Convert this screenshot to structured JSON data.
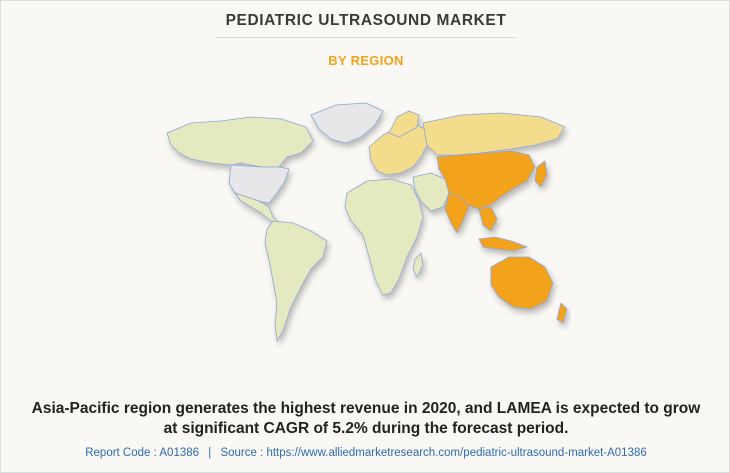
{
  "header": {
    "title": "PEDIATRIC ULTRASOUND MARKET",
    "subtitle": "BY REGION"
  },
  "colors": {
    "north_america": "#e7e7ea",
    "europe": "#f3dc8c",
    "asia_pacific": "#f3a21b",
    "lamea": "#e4e9bf",
    "border": "#8fa6d6",
    "accent": "#f3a21b"
  },
  "map": {
    "regions": [
      {
        "name": "North America",
        "shade": "light-gray"
      },
      {
        "name": "Europe",
        "shade": "light-gold"
      },
      {
        "name": "Asia-Pacific",
        "shade": "orange"
      },
      {
        "name": "LAMEA",
        "shade": "pale-olive"
      }
    ]
  },
  "headline": {
    "line1": "Asia-Pacific region generates the highest revenue in 2020, and LAMEA is expected to grow",
    "line2": "at significant CAGR of 5.2% during the forecast period."
  },
  "footer": {
    "report_code": "Report Code : A01386",
    "separator": "|",
    "source": "Source : https://www.alliedmarketresearch.com/pediatric-ultrasound-market-A01386"
  }
}
